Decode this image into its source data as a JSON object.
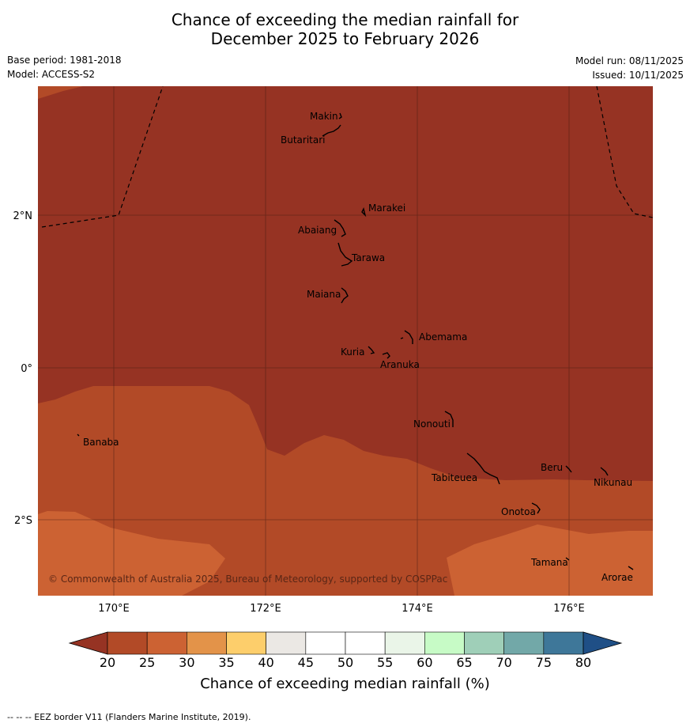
{
  "title": {
    "line1": "Chance of exceeding the median rainfall for",
    "line2": "December 2025 to February 2026"
  },
  "meta": {
    "base_period": "Base period: 1981-2018",
    "model": "Model: ACCESS-S2",
    "model_run": "Model run: 08/11/2025",
    "issued": "Issued: 10/11/2025"
  },
  "map": {
    "lon_labels": [
      "170°E",
      "172°E",
      "174°E",
      "176°E"
    ],
    "lat_labels": [
      "2°N",
      "0°",
      "2°S"
    ],
    "copyright": "© Commonwealth of Australia 2025, Bureau of Meteorology, supported by COSPPac",
    "islands": [
      {
        "name": "Makin"
      },
      {
        "name": "Butaritari"
      },
      {
        "name": "Marakei"
      },
      {
        "name": "Abaiang"
      },
      {
        "name": "Tarawa"
      },
      {
        "name": "Maiana"
      },
      {
        "name": "Abemama"
      },
      {
        "name": "Kuria"
      },
      {
        "name": "Aranuka"
      },
      {
        "name": "Banaba"
      },
      {
        "name": "Nonouti"
      },
      {
        "name": "Beru"
      },
      {
        "name": "Tabiteuea"
      },
      {
        "name": "Nikunau"
      },
      {
        "name": "Onotoa"
      },
      {
        "name": "Tamana"
      },
      {
        "name": "Arorae"
      }
    ]
  },
  "colorbar": {
    "ticks": [
      "20",
      "25",
      "30",
      "35",
      "40",
      "45",
      "50",
      "55",
      "60",
      "65",
      "70",
      "75",
      "80"
    ],
    "colors": [
      "#b24a27",
      "#cc6233",
      "#e39349",
      "#fdce6b",
      "#ebe8e4",
      "#ffffff",
      "#ffffff",
      "#eaf5e8",
      "#c7fbc6",
      "#9fcfb8",
      "#72a8a8",
      "#3e7799"
    ],
    "under_color": "#963323",
    "over_color": "#1f4f86",
    "title": "Chance of exceeding median rainfall (%)"
  },
  "footer": "--  --  -- EEZ border V11 (Flanders Marine Institute, 2019)."
}
